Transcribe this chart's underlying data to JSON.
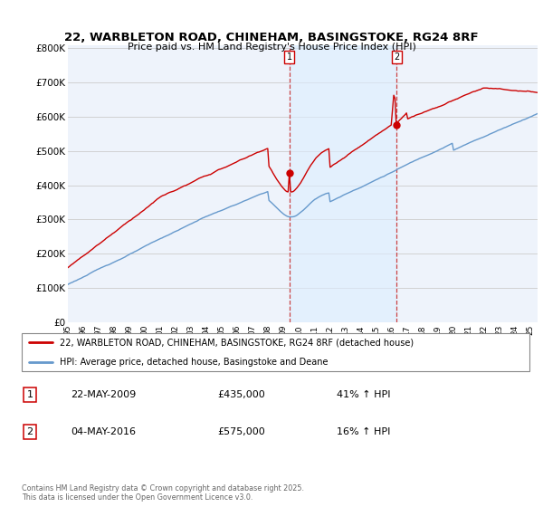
{
  "title_line1": "22, WARBLETON ROAD, CHINEHAM, BASINGSTOKE, RG24 8RF",
  "title_line2": "Price paid vs. HM Land Registry's House Price Index (HPI)",
  "legend_label1": "22, WARBLETON ROAD, CHINEHAM, BASINGSTOKE, RG24 8RF (detached house)",
  "legend_label2": "HPI: Average price, detached house, Basingstoke and Deane",
  "line1_color": "#cc0000",
  "line2_color": "#6699cc",
  "dot_color": "#cc0000",
  "vline_color": "#cc4444",
  "shade_color": "#ddeeff",
  "annotation1_label": "1",
  "annotation1_date": "22-MAY-2009",
  "annotation1_price": "£435,000",
  "annotation1_hpi": "41% ↑ HPI",
  "annotation2_label": "2",
  "annotation2_date": "04-MAY-2016",
  "annotation2_price": "£575,000",
  "annotation2_hpi": "16% ↑ HPI",
  "ylabel_ticks": [
    "£0",
    "£100K",
    "£200K",
    "£300K",
    "£400K",
    "£500K",
    "£600K",
    "£700K",
    "£800K"
  ],
  "ytick_values": [
    0,
    100000,
    200000,
    300000,
    400000,
    500000,
    600000,
    700000,
    800000
  ],
  "footnote": "Contains HM Land Registry data © Crown copyright and database right 2025.\nThis data is licensed under the Open Government Licence v3.0.",
  "sale1_year": 2009.39,
  "sale1_price": 435000,
  "sale2_year": 2016.34,
  "sale2_price": 575000,
  "xstart": 1995,
  "xend": 2025.5,
  "ymax": 800000
}
